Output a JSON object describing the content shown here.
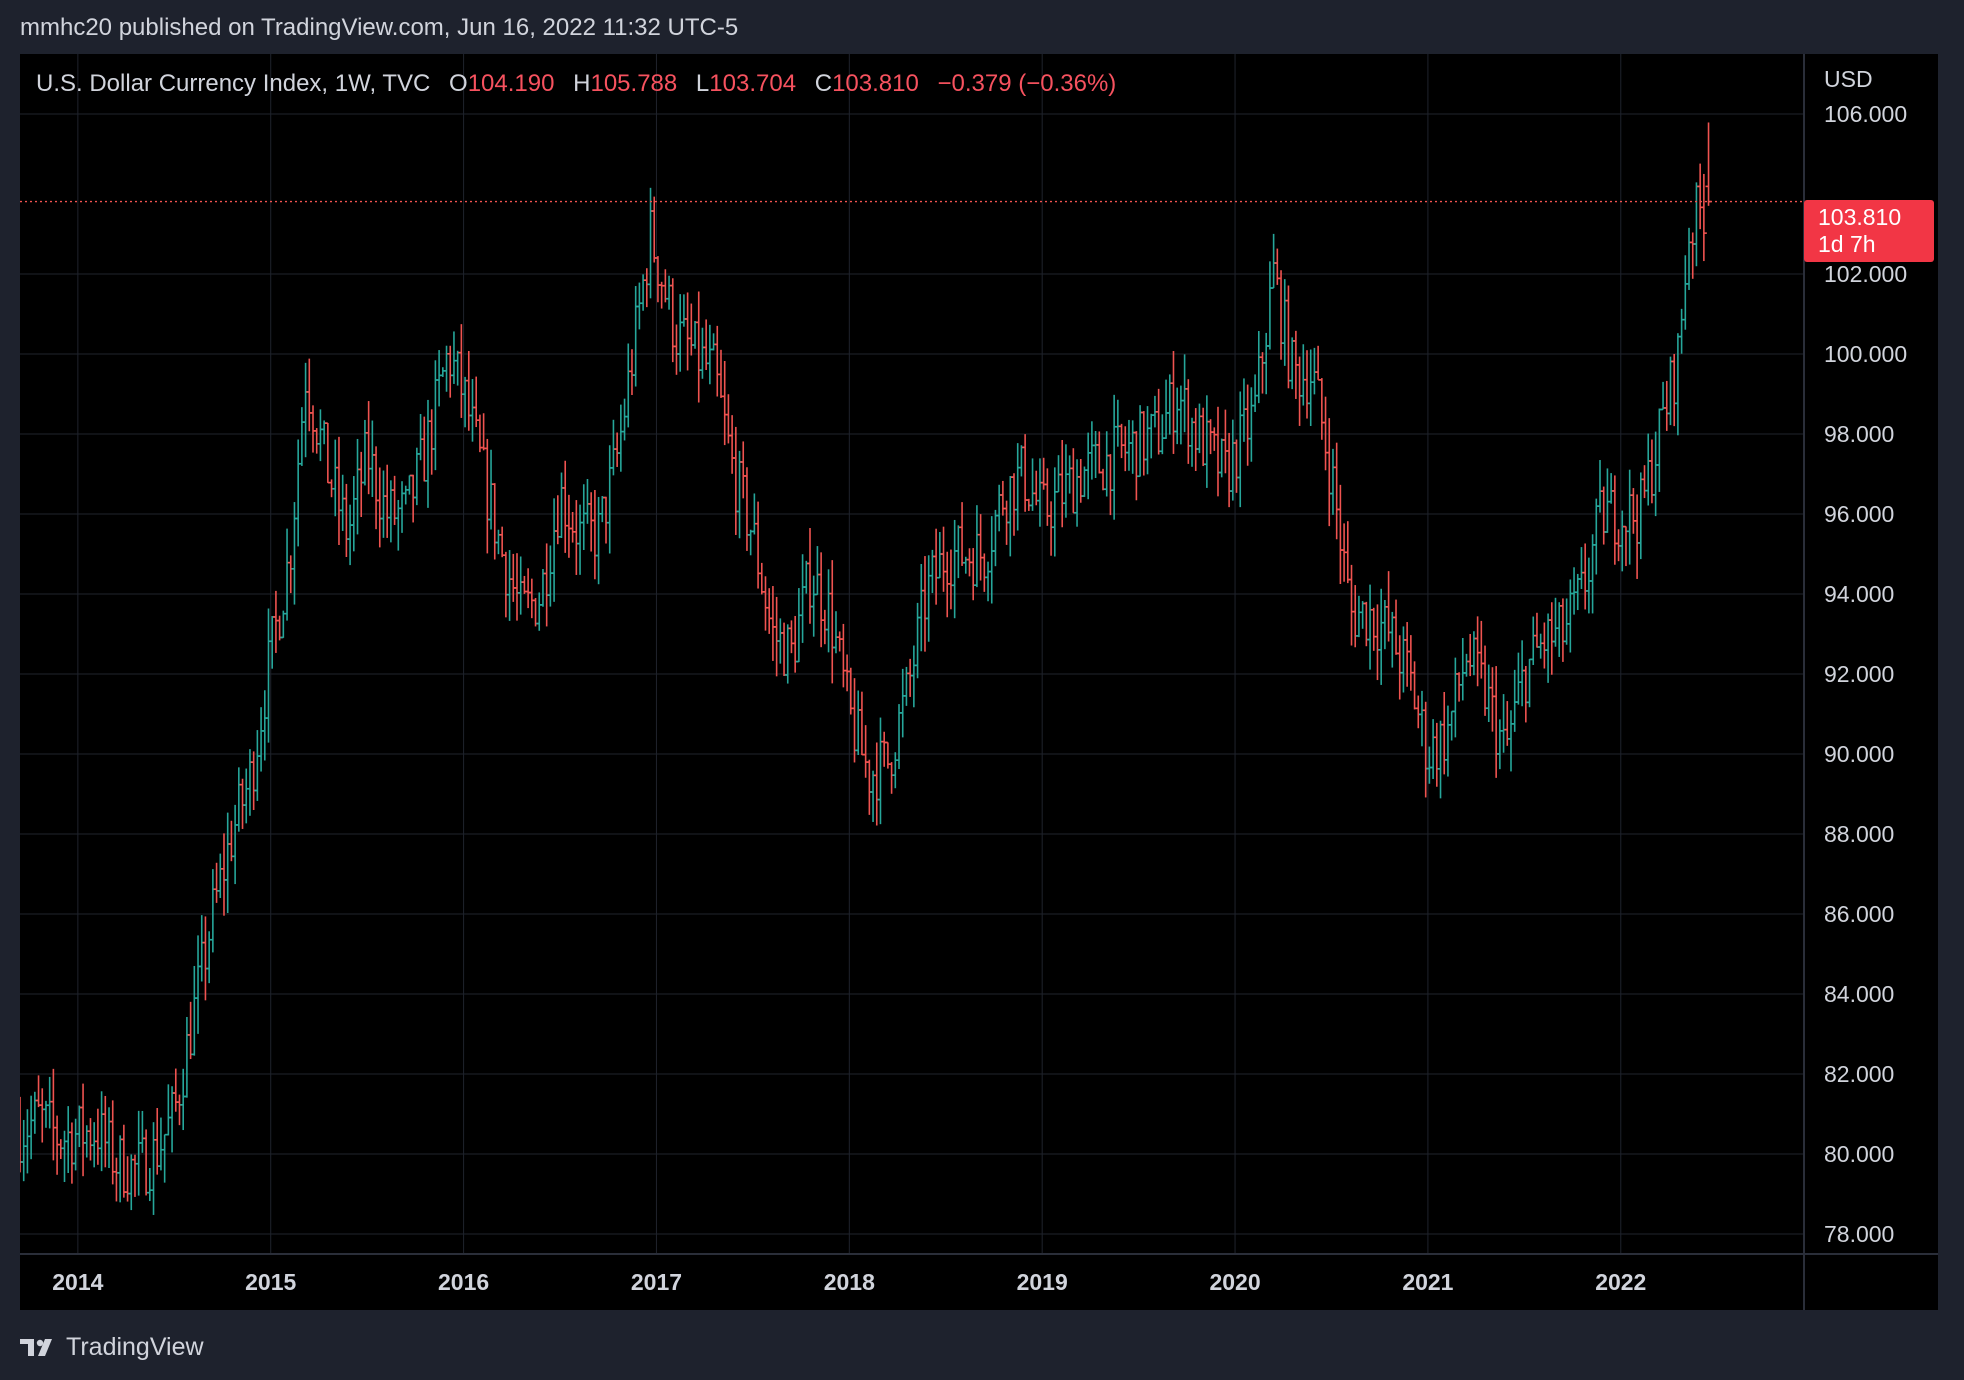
{
  "header": {
    "published_line": "mmhc20 published on TradingView.com, Jun 16, 2022 11:32 UTC-5"
  },
  "legend": {
    "symbol": "U.S. Dollar Currency Index, 1W, TVC",
    "o_label": "O",
    "o_value": "104.190",
    "h_label": "H",
    "h_value": "105.788",
    "l_label": "L",
    "l_value": "103.704",
    "c_label": "C",
    "c_value": "103.810",
    "change": "−0.379 (−0.36%)"
  },
  "price_axis": {
    "currency": "USD"
  },
  "price_tag": {
    "price": "103.810",
    "countdown": "1d 7h"
  },
  "footer": {
    "brand": "TradingView"
  },
  "colors": {
    "up": "#26a69a",
    "down": "#ef5350",
    "tag": "#f23645",
    "background": "#000000",
    "frame": "#1e222d",
    "grid": "#1f232c"
  },
  "chart_data": {
    "type": "ohlc",
    "interval": "1W",
    "ylim": [
      77.5,
      106.3
    ],
    "y_ticks": [
      "106.000",
      "102.000",
      "100.000",
      "98.000",
      "96.000",
      "94.000",
      "92.000",
      "90.000",
      "88.000",
      "86.000",
      "84.000",
      "82.000",
      "80.000",
      "78.000"
    ],
    "x_ticks": [
      "2014",
      "2015",
      "2016",
      "2017",
      "2018",
      "2019",
      "2020",
      "2021",
      "2022"
    ],
    "x_range": [
      2013.7,
      2022.95
    ],
    "last_price": 103.81,
    "last_price_line": true,
    "grid": true,
    "trajectory_closes": [
      [
        2013.7,
        80.6
      ],
      [
        2013.8,
        80.9
      ],
      [
        2013.9,
        80.4
      ],
      [
        2014.0,
        80.5
      ],
      [
        2014.1,
        80.6
      ],
      [
        2014.2,
        79.8
      ],
      [
        2014.3,
        79.6
      ],
      [
        2014.4,
        80.0
      ],
      [
        2014.5,
        81.0
      ],
      [
        2014.6,
        83.5
      ],
      [
        2014.7,
        86.0
      ],
      [
        2014.8,
        88.0
      ],
      [
        2014.9,
        89.5
      ],
      [
        2015.0,
        92.5
      ],
      [
        2015.1,
        95.0
      ],
      [
        2015.18,
        99.5
      ],
      [
        2015.3,
        97.0
      ],
      [
        2015.4,
        95.5
      ],
      [
        2015.5,
        97.5
      ],
      [
        2015.6,
        96.0
      ],
      [
        2015.7,
        96.0
      ],
      [
        2015.8,
        97.5
      ],
      [
        2015.92,
        100.0
      ],
      [
        2016.0,
        99.0
      ],
      [
        2016.1,
        97.0
      ],
      [
        2016.2,
        95.0
      ],
      [
        2016.3,
        93.5
      ],
      [
        2016.4,
        94.0
      ],
      [
        2016.5,
        96.5
      ],
      [
        2016.6,
        95.5
      ],
      [
        2016.7,
        95.5
      ],
      [
        2016.8,
        97.5
      ],
      [
        2016.97,
        103.0
      ],
      [
        2017.1,
        100.5
      ],
      [
        2017.2,
        100.0
      ],
      [
        2017.3,
        99.5
      ],
      [
        2017.4,
        97.0
      ],
      [
        2017.5,
        95.5
      ],
      [
        2017.6,
        93.0
      ],
      [
        2017.7,
        92.5
      ],
      [
        2017.8,
        94.5
      ],
      [
        2017.9,
        93.5
      ],
      [
        2018.0,
        91.0
      ],
      [
        2018.1,
        89.5
      ],
      [
        2018.2,
        89.8
      ],
      [
        2018.3,
        91.5
      ],
      [
        2018.4,
        94.0
      ],
      [
        2018.5,
        95.0
      ],
      [
        2018.6,
        95.0
      ],
      [
        2018.7,
        95.0
      ],
      [
        2018.8,
        96.5
      ],
      [
        2018.9,
        97.0
      ],
      [
        2019.0,
        96.0
      ],
      [
        2019.2,
        97.0
      ],
      [
        2019.4,
        97.5
      ],
      [
        2019.6,
        98.0
      ],
      [
        2019.7,
        99.0
      ],
      [
        2019.8,
        98.0
      ],
      [
        2019.95,
        97.0
      ],
      [
        2020.1,
        98.5
      ],
      [
        2020.2,
        102.0
      ],
      [
        2020.3,
        99.5
      ],
      [
        2020.4,
        99.5
      ],
      [
        2020.5,
        97.0
      ],
      [
        2020.6,
        93.5
      ],
      [
        2020.7,
        93.5
      ],
      [
        2020.8,
        93.0
      ],
      [
        2020.9,
        92.0
      ],
      [
        2021.0,
        90.0
      ],
      [
        2021.1,
        90.5
      ],
      [
        2021.2,
        92.5
      ],
      [
        2021.3,
        91.5
      ],
      [
        2021.4,
        90.0
      ],
      [
        2021.5,
        92.0
      ],
      [
        2021.6,
        92.8
      ],
      [
        2021.7,
        93.0
      ],
      [
        2021.8,
        94.0
      ],
      [
        2021.9,
        96.0
      ],
      [
        2022.0,
        96.0
      ],
      [
        2022.1,
        96.0
      ],
      [
        2022.2,
        98.0
      ],
      [
        2022.3,
        100.0
      ],
      [
        2022.35,
        103.0
      ],
      [
        2022.4,
        103.5
      ],
      [
        2022.45,
        103.81
      ]
    ],
    "last_bar": {
      "x": 2022.455,
      "open": 104.19,
      "high": 105.788,
      "low": 103.704,
      "close": 103.81
    }
  }
}
